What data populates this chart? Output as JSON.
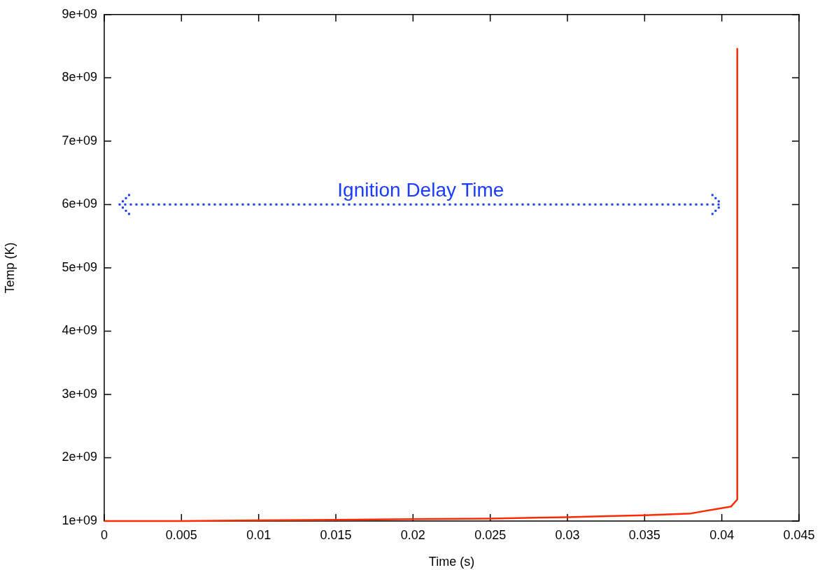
{
  "chart_data": {
    "type": "line",
    "xlabel": "Time (s)",
    "ylabel": "Temp (K)",
    "x": [
      0,
      0.005,
      0.01,
      0.015,
      0.02,
      0.025,
      0.03,
      0.033,
      0.035,
      0.038,
      0.0406,
      0.041,
      0.041
    ],
    "series": [
      {
        "color": "#ff2a00",
        "values": [
          1000000000,
          1000000000,
          1010000000,
          1020000000,
          1030000000,
          1040000000,
          1060000000,
          1080000000,
          1090000000,
          1120000000,
          1230000000,
          1340000000,
          8470000000
        ]
      }
    ],
    "annotations": [
      "Ignition Delay Time"
    ],
    "xlim": [
      0,
      0.045
    ],
    "xticks": [
      0,
      0.005,
      0.01,
      0.015,
      0.02,
      0.025,
      0.03,
      0.035,
      0.04,
      0.045
    ],
    "ylim": [
      1000000000,
      9000000000
    ],
    "yticks": [
      {
        "value": 1000000000,
        "label": "1e+09"
      },
      {
        "value": 2000000000,
        "label": "2e+09"
      },
      {
        "value": 3000000000,
        "label": "3e+09"
      },
      {
        "value": 4000000000,
        "label": "4e+09"
      },
      {
        "value": 5000000000,
        "label": "5e+09"
      },
      {
        "value": 6000000000,
        "label": "6e+09"
      },
      {
        "value": 7000000000,
        "label": "7e+09"
      },
      {
        "value": 8000000000,
        "label": "8e+09"
      },
      {
        "value": 9000000000,
        "label": "9e+09"
      }
    ],
    "grid": false,
    "legend": false,
    "marker": "none",
    "line_style": "solid"
  }
}
